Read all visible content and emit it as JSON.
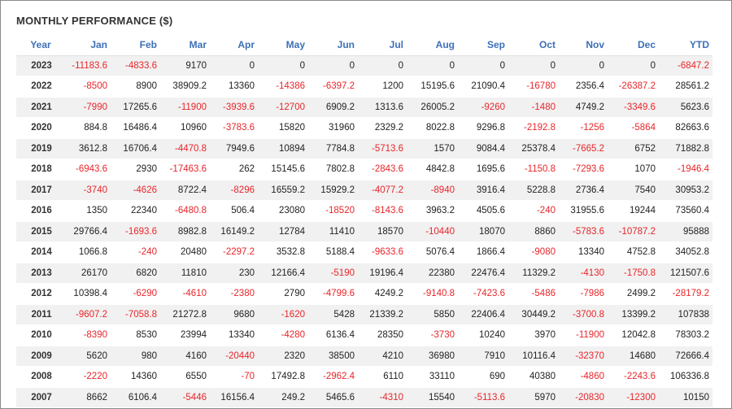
{
  "title": "MONTHLY PERFORMANCE ($)",
  "colors": {
    "header_text": "#3d6fb8",
    "negative": "#e8252a",
    "stripe": "#f1f1f1"
  },
  "columns": [
    "Year",
    "Jan",
    "Feb",
    "Mar",
    "Apr",
    "May",
    "Jun",
    "Jul",
    "Aug",
    "Sep",
    "Oct",
    "Nov",
    "Dec",
    "YTD"
  ],
  "rows": [
    [
      "2023",
      "-11183.6",
      "-4833.6",
      "9170",
      "0",
      "0",
      "0",
      "0",
      "0",
      "0",
      "0",
      "0",
      "0",
      "-6847.2"
    ],
    [
      "2022",
      "-8500",
      "8900",
      "38909.2",
      "13360",
      "-14386",
      "-6397.2",
      "1200",
      "15195.6",
      "21090.4",
      "-16780",
      "2356.4",
      "-26387.2",
      "28561.2"
    ],
    [
      "2021",
      "-7990",
      "17265.6",
      "-11900",
      "-3939.6",
      "-12700",
      "6909.2",
      "1313.6",
      "26005.2",
      "-9260",
      "-1480",
      "4749.2",
      "-3349.6",
      "5623.6"
    ],
    [
      "2020",
      "884.8",
      "16486.4",
      "10960",
      "-3783.6",
      "15820",
      "31960",
      "2329.2",
      "8022.8",
      "9296.8",
      "-2192.8",
      "-1256",
      "-5864",
      "82663.6"
    ],
    [
      "2019",
      "3612.8",
      "16706.4",
      "-4470.8",
      "7949.6",
      "10894",
      "7784.8",
      "-5713.6",
      "1570",
      "9084.4",
      "25378.4",
      "-7665.2",
      "6752",
      "71882.8"
    ],
    [
      "2018",
      "-6943.6",
      "2930",
      "-17463.6",
      "262",
      "15145.6",
      "7802.8",
      "-2843.6",
      "4842.8",
      "1695.6",
      "-1150.8",
      "-7293.6",
      "1070",
      "-1946.4"
    ],
    [
      "2017",
      "-3740",
      "-4626",
      "8722.4",
      "-8296",
      "16559.2",
      "15929.2",
      "-4077.2",
      "-8940",
      "3916.4",
      "5228.8",
      "2736.4",
      "7540",
      "30953.2"
    ],
    [
      "2016",
      "1350",
      "22340",
      "-6480.8",
      "506.4",
      "23080",
      "-18520",
      "-8143.6",
      "3963.2",
      "4505.6",
      "-240",
      "31955.6",
      "19244",
      "73560.4"
    ],
    [
      "2015",
      "29766.4",
      "-1693.6",
      "8982.8",
      "16149.2",
      "12784",
      "11410",
      "18570",
      "-10440",
      "18070",
      "8860",
      "-5783.6",
      "-10787.2",
      "95888"
    ],
    [
      "2014",
      "1066.8",
      "-240",
      "20480",
      "-2297.2",
      "3532.8",
      "5188.4",
      "-9633.6",
      "5076.4",
      "1866.4",
      "-9080",
      "13340",
      "4752.8",
      "34052.8"
    ],
    [
      "2013",
      "26170",
      "6820",
      "11810",
      "230",
      "12166.4",
      "-5190",
      "19196.4",
      "22380",
      "22476.4",
      "11329.2",
      "-4130",
      "-1750.8",
      "121507.6"
    ],
    [
      "2012",
      "10398.4",
      "-6290",
      "-4610",
      "-2380",
      "2790",
      "-4799.6",
      "4249.2",
      "-9140.8",
      "-7423.6",
      "-5486",
      "-7986",
      "2499.2",
      "-28179.2"
    ],
    [
      "2011",
      "-9607.2",
      "-7058.8",
      "21272.8",
      "9680",
      "-1620",
      "5428",
      "21339.2",
      "5850",
      "22406.4",
      "30449.2",
      "-3700.8",
      "13399.2",
      "107838"
    ],
    [
      "2010",
      "-8390",
      "8530",
      "23994",
      "13340",
      "-4280",
      "6136.4",
      "28350",
      "-3730",
      "10240",
      "3970",
      "-11900",
      "12042.8",
      "78303.2"
    ],
    [
      "2009",
      "5620",
      "980",
      "4160",
      "-20440",
      "2320",
      "38500",
      "4210",
      "36980",
      "7910",
      "10116.4",
      "-32370",
      "14680",
      "72666.4"
    ],
    [
      "2008",
      "-2220",
      "14360",
      "6550",
      "-70",
      "17492.8",
      "-2962.4",
      "6110",
      "33110",
      "690",
      "40380",
      "-4860",
      "-2243.6",
      "106336.8"
    ],
    [
      "2007",
      "8662",
      "6106.4",
      "-5446",
      "16156.4",
      "249.2",
      "5465.6",
      "-4310",
      "15540",
      "-5113.6",
      "5970",
      "-20830",
      "-12300",
      "10150"
    ]
  ]
}
